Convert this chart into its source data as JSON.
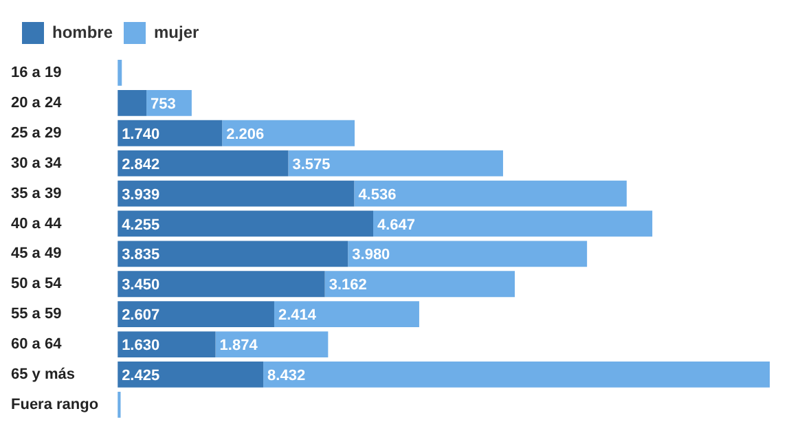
{
  "chart_data": {
    "type": "bar",
    "orientation": "horizontal",
    "stacked": true,
    "legend": "top left",
    "categories": [
      "16 a 19",
      "20 a 24",
      "25 a 29",
      "30 a 34",
      "35 a 39",
      "40 a 44",
      "45 a 49",
      "50 a 54",
      "55 a 59",
      "60 a 64",
      "65 y más",
      "Fuera rango"
    ],
    "series": [
      {
        "name": "hombre",
        "color": "#3877b4",
        "values": [
          null,
          480,
          1740,
          2842,
          3939,
          4255,
          3835,
          3450,
          2607,
          1630,
          2425,
          null
        ],
        "value_labels": [
          null,
          null,
          "1.740",
          "2.842",
          "3.939",
          "4.255",
          "3.835",
          "3.450",
          "2.607",
          "1.630",
          "2.425",
          null
        ]
      },
      {
        "name": "mujer",
        "color": "#6eaee8",
        "values": [
          70,
          753,
          2206,
          3575,
          4536,
          4647,
          3980,
          3162,
          2414,
          1874,
          8432,
          50
        ],
        "value_labels": [
          null,
          "753",
          "2.206",
          "3.575",
          "4.536",
          "4.647",
          "3.980",
          "3.162",
          "2.414",
          "1.874",
          "8.432",
          null
        ]
      }
    ]
  }
}
